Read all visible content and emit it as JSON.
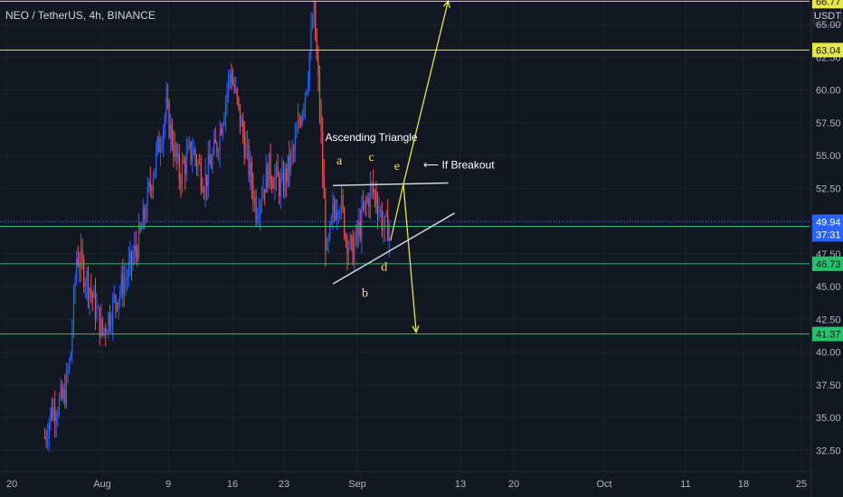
{
  "header": {
    "title": "NEO / TetherUS, 4h, BINANCE"
  },
  "axis": {
    "currency": "USDT"
  },
  "chart_data": {
    "type": "candlestick",
    "title": "NEO / TetherUS, 4h, BINANCE",
    "symbol": "NEO/USDT",
    "timeframe": "4h",
    "exchange": "BINANCE",
    "ylim": [
      31,
      68.5
    ],
    "y_ticks": [
      32.5,
      35.0,
      37.5,
      40.0,
      42.5,
      45.0,
      47.5,
      50.0,
      52.5,
      55.0,
      57.5,
      60.0,
      62.5,
      65.0
    ],
    "y_tick_labels": [
      "32.50",
      "35.00",
      "37.50",
      "40.00",
      "42.50",
      "45.00",
      "47.50",
      "50.00",
      "52.50",
      "55.00",
      "57.50",
      "60.00",
      "62.50",
      "65.00"
    ],
    "x_ticks": [
      "20",
      "Aug",
      "9",
      "16",
      "23",
      "Sep",
      "13",
      "20",
      "Oct",
      "11",
      "18",
      "25"
    ],
    "price_path": [
      [
        "Jul 26",
        33.5
      ],
      [
        "Jul 27",
        35.5
      ],
      [
        "Jul 29",
        36.5
      ],
      [
        "Jul 30",
        39.5
      ],
      [
        "Jul 31",
        47.5
      ],
      [
        "Aug 2",
        45.0
      ],
      [
        "Aug 4",
        41.5
      ],
      [
        "Aug 6",
        44.0
      ],
      [
        "Aug 8",
        46.0
      ],
      [
        "Aug 10",
        49.0
      ],
      [
        "Aug 12",
        54.0
      ],
      [
        "Aug 14",
        58.5
      ],
      [
        "Aug 16",
        53.5
      ],
      [
        "Aug 18",
        55.5
      ],
      [
        "Aug 20",
        53.0
      ],
      [
        "Aug 22",
        56.0
      ],
      [
        "Aug 24",
        61.5
      ],
      [
        "Aug 26",
        56.5
      ],
      [
        "Aug 28",
        51.0
      ],
      [
        "Aug 30",
        54.0
      ],
      [
        "Sep 1",
        52.5
      ],
      [
        "Sep 3",
        55.5
      ],
      [
        "Sep 5",
        61.0
      ],
      [
        "Sep 6",
        66.0
      ],
      [
        "Sep 7",
        58.0
      ],
      [
        "Sep 8",
        47.0
      ],
      [
        "Sep 9",
        50.5
      ],
      [
        "Sep 10",
        52.0
      ],
      [
        "Sep 11",
        49.0
      ],
      [
        "Sep 12",
        47.5
      ],
      [
        "Sep 14",
        51.0
      ],
      [
        "Sep 15",
        52.5
      ],
      [
        "Sep 16",
        51.5
      ],
      [
        "Sep 17",
        49.3
      ],
      [
        "Sep 18",
        49.9
      ]
    ],
    "horizontal_levels": [
      {
        "value": 66.77,
        "color": "#e6e64f",
        "label": "66.77"
      },
      {
        "value": 63.04,
        "color": "#e6e64f",
        "label": "63.04"
      },
      {
        "value": 49.59,
        "color": "#26c26b",
        "label": "49.59"
      },
      {
        "value": 46.73,
        "color": "#26c26b",
        "label": "46.73"
      },
      {
        "value": 41.37,
        "color": "#26c26b",
        "label": "41.37"
      }
    ],
    "current_price": {
      "value": 49.94,
      "countdown": "37:31",
      "color": "#2962ff"
    },
    "pattern": {
      "name": "Ascending Triangle",
      "resistance": [
        [
          "Sep 9",
          52.7
        ],
        [
          "Sep 27",
          52.9
        ]
      ],
      "support": [
        [
          "Sep 9",
          45.2
        ],
        [
          "Sep 28",
          50.6
        ]
      ],
      "waves": [
        {
          "label": "a",
          "point": [
            "Sep 10",
            54.3
          ]
        },
        {
          "label": "b",
          "point": [
            "Sep 14",
            44.2
          ]
        },
        {
          "label": "c",
          "point": [
            "Sep 15",
            54.6
          ]
        },
        {
          "label": "d",
          "point": [
            "Sep 17",
            46.2
          ]
        },
        {
          "label": "e",
          "point": [
            "Sep 19",
            53.9
          ]
        }
      ],
      "projection_up": [
        [
          "Sep 18",
          48.5
        ],
        [
          "Sep 20",
          52.8
        ],
        [
          "Sep 27",
          66.8
        ]
      ],
      "projection_down": [
        [
          "Sep 20",
          52.8
        ],
        [
          "Sep 22",
          41.5
        ]
      ],
      "breakout_note": "⟵ If Breakout"
    },
    "colors": {
      "up": "#2962ff",
      "down": "#ef5350",
      "background": "#131722",
      "grid": "#1e222d",
      "annotation": "#e6e64f"
    }
  }
}
